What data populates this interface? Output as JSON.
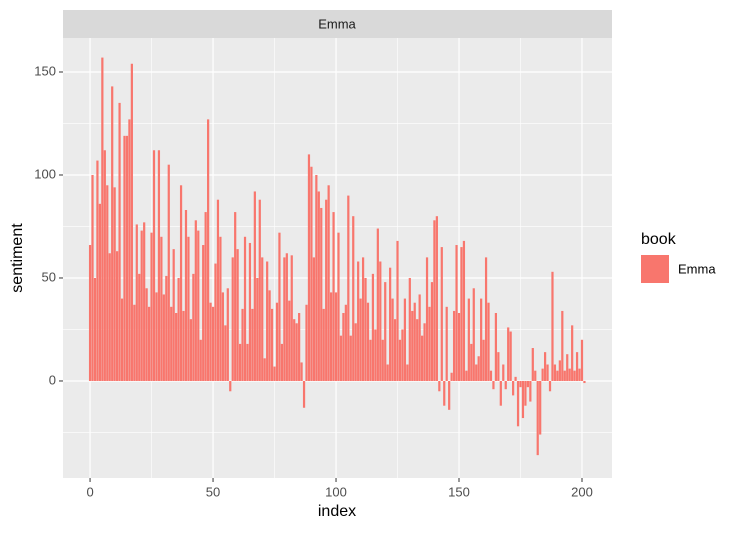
{
  "chart_data": {
    "type": "bar",
    "facet": "Emma",
    "xlabel": "index",
    "ylabel": "sentiment",
    "legend_title": "book",
    "xlim": [
      -11,
      212.2
    ],
    "ylim": [
      -47.1,
      166.5
    ],
    "xticks": [
      0,
      50,
      100,
      150,
      200
    ],
    "yticks": [
      0,
      50,
      100,
      150
    ],
    "xminor": [
      25,
      75,
      125,
      175
    ],
    "yminor": [
      -25,
      25,
      75,
      125
    ],
    "grid": true,
    "legend_position": "right",
    "x": [
      0,
      1,
      2,
      3,
      4,
      5,
      6,
      7,
      8,
      9,
      10,
      11,
      12,
      13,
      14,
      15,
      16,
      17,
      18,
      19,
      20,
      21,
      22,
      23,
      24,
      25,
      26,
      27,
      28,
      29,
      30,
      31,
      32,
      33,
      34,
      35,
      36,
      37,
      38,
      39,
      40,
      41,
      42,
      43,
      44,
      45,
      46,
      47,
      48,
      49,
      50,
      51,
      52,
      53,
      54,
      55,
      56,
      57,
      58,
      59,
      60,
      61,
      62,
      63,
      64,
      65,
      66,
      67,
      68,
      69,
      70,
      71,
      72,
      73,
      74,
      75,
      76,
      77,
      78,
      79,
      80,
      81,
      82,
      83,
      84,
      85,
      86,
      87,
      88,
      89,
      90,
      91,
      92,
      93,
      94,
      95,
      96,
      97,
      98,
      99,
      100,
      101,
      102,
      103,
      104,
      105,
      106,
      107,
      108,
      109,
      110,
      111,
      112,
      113,
      114,
      115,
      116,
      117,
      118,
      119,
      120,
      121,
      122,
      123,
      124,
      125,
      126,
      127,
      128,
      129,
      130,
      131,
      132,
      133,
      134,
      135,
      136,
      137,
      138,
      139,
      140,
      141,
      142,
      143,
      144,
      145,
      146,
      147,
      148,
      149,
      150,
      151,
      152,
      153,
      154,
      155,
      156,
      157,
      158,
      159,
      160,
      161,
      162,
      163,
      164,
      165,
      166,
      167,
      168,
      169,
      170,
      171,
      172,
      173,
      174,
      175,
      176,
      177,
      178,
      179,
      180,
      181,
      182,
      183,
      184,
      185,
      186,
      187,
      188,
      189,
      190,
      191,
      192,
      193,
      194,
      195,
      196,
      197,
      198,
      199,
      200,
      201
    ],
    "series": [
      {
        "name": "Emma",
        "color": "#F8766D",
        "values": [
          66,
          100,
          50,
          107,
          86,
          157,
          112,
          95,
          62,
          143,
          94,
          63,
          135,
          40,
          119,
          119,
          127,
          154,
          37,
          76,
          52,
          73,
          77,
          45,
          36,
          72,
          112,
          43,
          112,
          70,
          42,
          51,
          105,
          36,
          64,
          33,
          50,
          95,
          34,
          83,
          70,
          30,
          52,
          78,
          73,
          20,
          66,
          82,
          127,
          38,
          36,
          57,
          88,
          70,
          43,
          27,
          45,
          -5,
          60,
          82,
          64,
          18,
          35,
          70,
          18,
          67,
          35,
          92,
          50,
          88,
          60,
          11,
          58,
          44,
          35,
          7,
          38,
          72,
          18,
          60,
          62,
          39,
          61,
          30,
          28,
          33,
          9,
          -13,
          37,
          110,
          104,
          60,
          100,
          92,
          84,
          35,
          88,
          95,
          43,
          82,
          43,
          72,
          22,
          33,
          37,
          90,
          22,
          80,
          28,
          58,
          40,
          60,
          50,
          38,
          20,
          52,
          25,
          74,
          58,
          20,
          48,
          8,
          55,
          40,
          30,
          68,
          20,
          25,
          40,
          8,
          50,
          34,
          38,
          30,
          42,
          22,
          28,
          60,
          36,
          48,
          78,
          80,
          -5,
          65,
          -12,
          36,
          -14,
          4,
          34,
          66,
          33,
          65,
          68,
          5,
          40,
          18,
          45,
          8,
          12,
          40,
          20,
          60,
          38,
          5,
          -4,
          33,
          14,
          -12,
          8,
          -4,
          26,
          24,
          -7,
          2,
          -22,
          -3,
          -18,
          -12,
          -3,
          -10,
          16,
          5,
          -36,
          -26,
          6,
          14,
          8,
          -5,
          53,
          8,
          5,
          10,
          34,
          5,
          13,
          6,
          27,
          5,
          14,
          6,
          20,
          -1
        ]
      }
    ]
  }
}
